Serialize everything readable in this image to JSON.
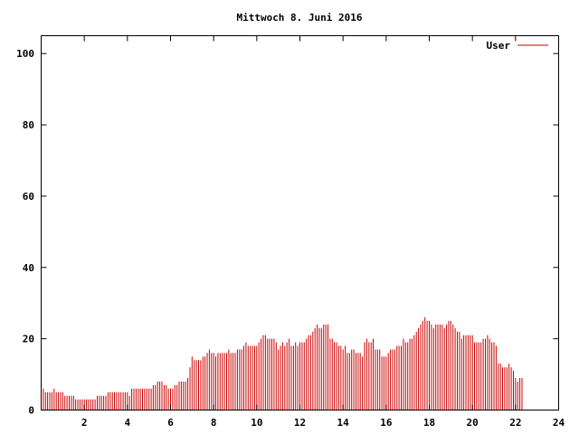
{
  "chart_data": {
    "type": "bar",
    "title": "Mittwoch 8. Juni 2016",
    "xlim": [
      0,
      24
    ],
    "ylim": [
      0,
      105
    ],
    "x_ticks": [
      2,
      4,
      6,
      8,
      10,
      12,
      14,
      16,
      18,
      20,
      22,
      24
    ],
    "y_ticks": [
      0,
      20,
      40,
      60,
      80,
      100
    ],
    "grid": false,
    "legend_position": "top-right",
    "bar_color": "#cc0000",
    "series": [
      {
        "name": "User",
        "interval_hours": 0.1,
        "values": [
          8,
          6,
          5,
          5,
          5,
          5,
          6,
          5,
          5,
          5,
          5,
          4,
          4,
          4,
          4,
          4,
          3,
          3,
          3,
          3,
          3,
          3,
          3,
          3,
          3,
          3,
          4,
          4,
          4,
          4,
          4,
          5,
          5,
          5,
          5,
          5,
          5,
          5,
          5,
          5,
          5,
          4,
          6,
          6,
          6,
          6,
          6,
          6,
          6,
          6,
          6,
          6,
          7,
          7,
          8,
          8,
          8,
          7,
          7,
          6,
          6,
          6,
          7,
          7,
          8,
          8,
          8,
          8,
          9,
          12,
          15,
          14,
          14,
          14,
          14,
          15,
          15,
          16,
          17,
          16,
          16,
          15,
          16,
          16,
          16,
          16,
          16,
          17,
          16,
          16,
          16,
          17,
          17,
          17,
          18,
          19,
          18,
          18,
          18,
          18,
          18,
          19,
          20,
          21,
          21,
          20,
          20,
          20,
          20,
          19,
          17,
          18,
          19,
          18,
          19,
          20,
          18,
          18,
          19,
          18,
          19,
          19,
          19,
          20,
          21,
          21,
          22,
          23,
          24,
          23,
          23,
          24,
          24,
          24,
          20,
          20,
          19,
          19,
          18,
          18,
          17,
          18,
          16,
          16,
          17,
          17,
          16,
          16,
          16,
          15,
          19,
          20,
          19,
          19,
          20,
          17,
          17,
          17,
          15,
          15,
          15,
          16,
          17,
          17,
          17,
          18,
          18,
          18,
          20,
          19,
          19,
          20,
          20,
          21,
          22,
          23,
          24,
          25,
          26,
          25,
          25,
          24,
          23,
          24,
          24,
          24,
          24,
          23,
          24,
          25,
          25,
          24,
          23,
          22,
          22,
          20,
          21,
          21,
          21,
          21,
          21,
          19,
          19,
          19,
          19,
          20,
          20,
          21,
          20,
          19,
          19,
          18,
          13,
          13,
          12,
          12,
          12,
          13,
          12,
          11,
          9,
          8,
          9,
          9
        ]
      }
    ]
  }
}
